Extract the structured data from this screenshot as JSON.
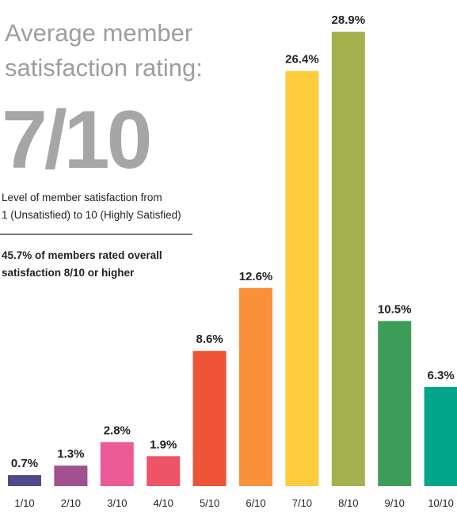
{
  "chart_data": {
    "type": "bar",
    "title": [
      "Average member",
      "satisfaction rating:"
    ],
    "headline": "7/10",
    "subtitle": [
      "Level of member satisfaction from",
      "1 (Unsatisfied) to 10 (Highly Satisfied)"
    ],
    "annotation": [
      "45.7% of members rated overall",
      "satisfaction 8/10 or higher"
    ],
    "categories": [
      "1/10",
      "2/10",
      "3/10",
      "4/10",
      "5/10",
      "6/10",
      "7/10",
      "8/10",
      "9/10",
      "10/10"
    ],
    "values": [
      0.7,
      1.3,
      2.8,
      1.9,
      8.6,
      12.6,
      26.4,
      28.9,
      10.5,
      6.3
    ],
    "value_labels": [
      "0.7%",
      "1.3%",
      "2.8%",
      "1.9%",
      "8.6%",
      "12.6%",
      "26.4%",
      "28.9%",
      "10.5%",
      "6.3%"
    ],
    "colors": [
      "#4f4a8a",
      "#a0508f",
      "#ec5a98",
      "#ee5467",
      "#ef5436",
      "#f8913a",
      "#fdcc3c",
      "#a5b14c",
      "#3d9c57",
      "#00a58a"
    ]
  }
}
